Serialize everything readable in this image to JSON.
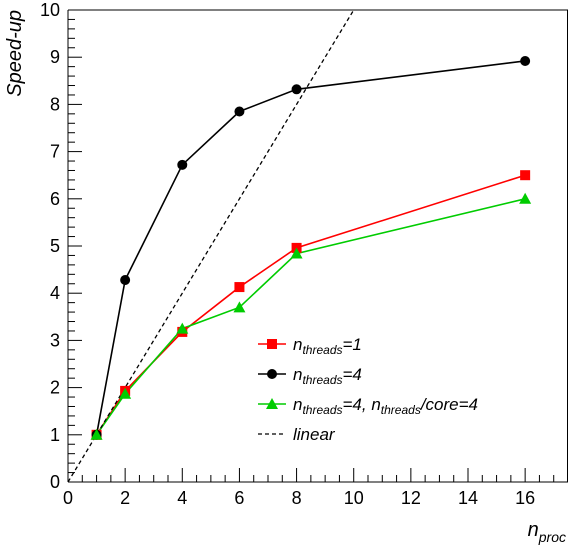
{
  "chart_data": {
    "type": "line",
    "xlabel": {
      "main": "n",
      "sub": "proc"
    },
    "ylabel": "Speed-up",
    "xlim": [
      0,
      17.5
    ],
    "ylim": [
      0,
      10
    ],
    "xticks": [
      0,
      2,
      4,
      6,
      8,
      10,
      12,
      14,
      16
    ],
    "yticks": [
      0,
      1,
      2,
      3,
      4,
      5,
      6,
      7,
      8,
      9,
      10
    ],
    "grid": false,
    "legend_position": "lower-right",
    "series": [
      {
        "name": "n_threads=1",
        "label_parts": [
          [
            "n",
            ""
          ],
          [
            "threads",
            "sub"
          ],
          [
            "=1",
            ""
          ]
        ],
        "color": "#ff0000",
        "marker": "square",
        "dash": "",
        "x": [
          1,
          2,
          4,
          6,
          8,
          16
        ],
        "y": [
          1.0,
          1.93,
          3.18,
          4.13,
          4.96,
          6.5
        ]
      },
      {
        "name": "n_threads=4",
        "label_parts": [
          [
            "n",
            ""
          ],
          [
            "threads",
            "sub"
          ],
          [
            "=4",
            ""
          ]
        ],
        "color": "#000000",
        "marker": "circle",
        "dash": "",
        "x": [
          1,
          2,
          4,
          6,
          8,
          16
        ],
        "y": [
          1.0,
          4.28,
          6.72,
          7.85,
          8.32,
          8.92
        ]
      },
      {
        "name": "n_threads=4, n_threads/core=4",
        "label_parts": [
          [
            "n",
            ""
          ],
          [
            "threads",
            "sub"
          ],
          [
            "=4, n",
            ""
          ],
          [
            "threads",
            "sub"
          ],
          [
            "/core=4",
            ""
          ]
        ],
        "color": "#00cc00",
        "marker": "triangle",
        "dash": "",
        "x": [
          1,
          2,
          4,
          6,
          8,
          16
        ],
        "y": [
          1.0,
          1.87,
          3.25,
          3.7,
          4.84,
          6.0
        ]
      },
      {
        "name": "linear",
        "label_parts": [
          [
            "linear",
            ""
          ]
        ],
        "color": "#000000",
        "marker": "none",
        "dash": "4,3",
        "x": [
          0,
          10
        ],
        "y": [
          0,
          10
        ]
      }
    ]
  }
}
